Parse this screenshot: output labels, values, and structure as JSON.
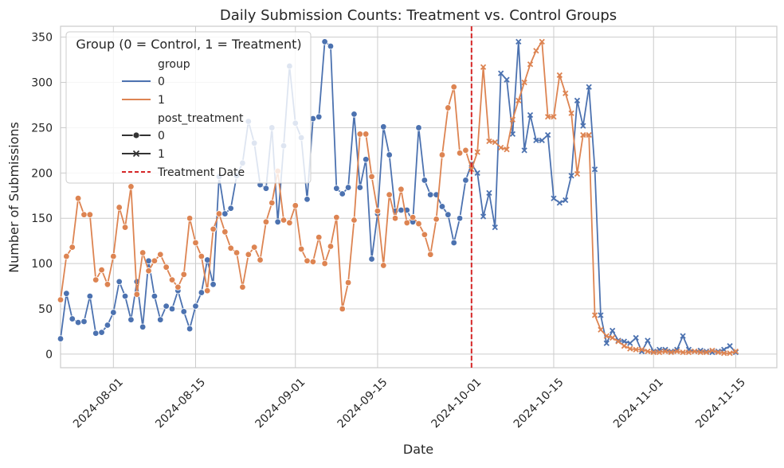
{
  "chart_data": {
    "type": "line",
    "title": "Daily Submission Counts: Treatment vs. Control Groups",
    "xlabel": "Date",
    "ylabel": "Number of Submissions",
    "x_ticks": [
      "2024-08-01",
      "2024-08-15",
      "2024-09-01",
      "2024-09-15",
      "2024-10-01",
      "2024-10-15",
      "2024-11-01",
      "2024-11-15"
    ],
    "y_ticks": [
      0,
      50,
      100,
      150,
      200,
      250,
      300,
      350
    ],
    "xlim": [
      "2024-07-23",
      "2024-11-22"
    ],
    "ylim": [
      -15,
      362
    ],
    "grid": true,
    "treatment_date": "2024-10-01",
    "colors": {
      "group0": "#4c72b0",
      "group1": "#dd8452",
      "treatment_line": "#d62728",
      "grid": "#cccccc"
    },
    "legend": {
      "placement": "top-left",
      "title": "Group (0 = Control, 1 = Treatment)",
      "group_header": "group",
      "group_0": "0",
      "group_1": "1",
      "post_header": "post_treatment",
      "post_0": "0",
      "post_1": "1",
      "treatment_label": "Treatment Date"
    },
    "start_date": "2024-07-23",
    "series": [
      {
        "name": "0",
        "values": [
          17,
          67,
          39,
          35,
          36,
          64,
          23,
          24,
          32,
          46,
          80,
          64,
          38,
          80,
          30,
          103,
          64,
          38,
          53,
          50,
          70,
          47,
          28,
          53,
          68,
          104,
          77,
          196,
          155,
          161,
          197,
          211,
          257,
          233,
          187,
          183,
          250,
          146,
          230,
          318,
          255,
          239,
          171,
          260,
          262,
          345,
          340,
          183,
          177,
          184,
          265,
          184,
          215,
          105,
          155,
          251,
          220,
          158,
          159,
          159,
          146,
          250,
          192,
          176,
          176,
          163,
          154,
          123,
          150,
          192,
          210,
          200,
          152,
          178,
          140,
          310,
          303,
          243,
          345,
          225,
          264,
          236,
          236,
          242,
          172,
          167,
          170,
          197,
          280,
          252,
          295,
          204,
          43,
          12,
          26,
          15,
          14,
          12,
          18,
          3,
          15,
          3,
          5,
          5,
          3,
          5,
          20,
          5,
          3,
          4,
          3,
          2,
          3,
          5,
          9,
          2
        ],
        "markers": "circle-until-2024-10-01-then-x"
      },
      {
        "name": "1",
        "values": [
          60,
          108,
          118,
          172,
          154,
          154,
          82,
          93,
          77,
          108,
          162,
          140,
          185,
          66,
          112,
          92,
          103,
          110,
          96,
          82,
          74,
          88,
          150,
          123,
          108,
          70,
          138,
          155,
          135,
          117,
          112,
          74,
          110,
          118,
          104,
          146,
          167,
          202,
          148,
          145,
          164,
          116,
          103,
          102,
          129,
          100,
          119,
          151,
          50,
          79,
          148,
          243,
          243,
          196,
          158,
          98,
          176,
          150,
          182,
          145,
          151,
          144,
          132,
          110,
          149,
          220,
          272,
          295,
          222,
          225,
          204,
          223,
          317,
          235,
          234,
          228,
          226,
          259,
          280,
          300,
          320,
          335,
          345,
          262,
          262,
          308,
          288,
          266,
          199,
          242,
          242,
          43,
          27,
          20,
          18,
          14,
          9,
          6,
          5,
          5,
          3,
          2,
          2,
          3,
          2,
          3,
          2,
          2,
          3,
          2,
          2,
          4,
          2,
          1,
          1,
          3
        ],
        "markers": "circle-until-2024-10-01-then-x"
      }
    ]
  }
}
